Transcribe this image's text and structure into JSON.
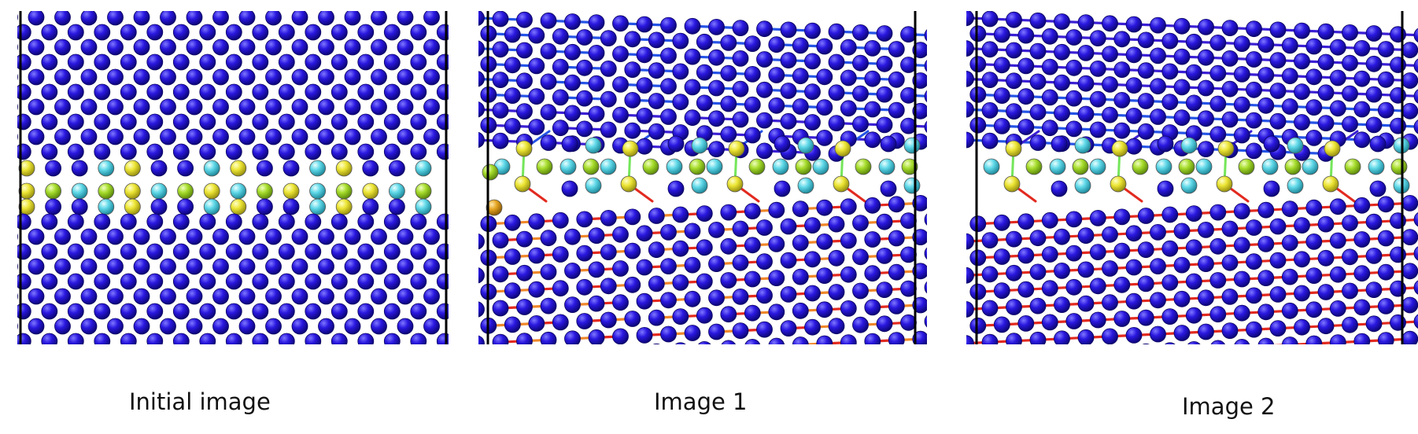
{
  "figure": {
    "panels": [
      {
        "id": "initial",
        "caption": "Initial image",
        "bonds": "none"
      },
      {
        "id": "image1",
        "caption": "Image 1",
        "bonds": "partial"
      },
      {
        "id": "image2",
        "caption": "Image 2",
        "bonds": "full"
      }
    ],
    "colors": {
      "atom_bulk": "#1f10d8",
      "atom_gb_yellow": "#e6e12c",
      "atom_gb_cyan": "#52d4e4",
      "atom_gb_green": "#9ad62a",
      "atom_gb_orange": "#e3a21d",
      "bond_upper_blue": "#2553e6",
      "bond_upper_violet": "#3a1fd4",
      "bond_lower_orange": "#f0872a",
      "bond_lower_red": "#e22a1f",
      "bond_gb_green": "#74e65a",
      "frame": "#000000"
    }
  }
}
